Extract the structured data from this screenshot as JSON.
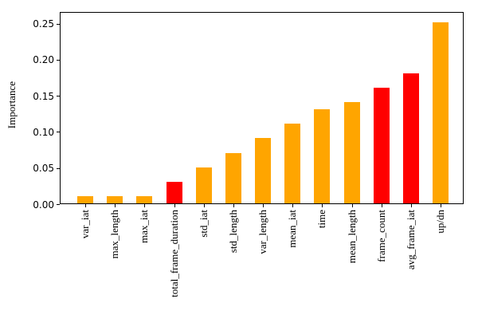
{
  "figure": {
    "background": "#ffffff",
    "axis_color": "#000000"
  },
  "chart_data": {
    "type": "bar",
    "title": "",
    "xlabel": "",
    "ylabel": "Importance",
    "categories": [
      "var_iat",
      "max_length",
      "max_iat",
      "total_frame_duration",
      "std_iat",
      "std_length",
      "var_length",
      "mean_iat",
      "time",
      "mean_length",
      "frame_count",
      "avg_frame_iat",
      "up/dn"
    ],
    "values": [
      0.01,
      0.01,
      0.01,
      0.03,
      0.05,
      0.07,
      0.09,
      0.11,
      0.13,
      0.14,
      0.16,
      0.18,
      0.25
    ],
    "bar_colors": [
      "orange",
      "orange",
      "orange",
      "red",
      "orange",
      "orange",
      "orange",
      "orange",
      "orange",
      "orange",
      "red",
      "red",
      "orange"
    ],
    "palette": {
      "orange": "#FFA500",
      "red": "#FF0000"
    },
    "ytick_labels": [
      "0.00",
      "0.05",
      "0.10",
      "0.15",
      "0.20",
      "0.25"
    ],
    "ytick_values": [
      0.0,
      0.05,
      0.1,
      0.15,
      0.2,
      0.25
    ],
    "ylim": [
      0,
      0.266
    ],
    "grid": false,
    "legend": null,
    "xtick_rotation_deg": 90
  }
}
